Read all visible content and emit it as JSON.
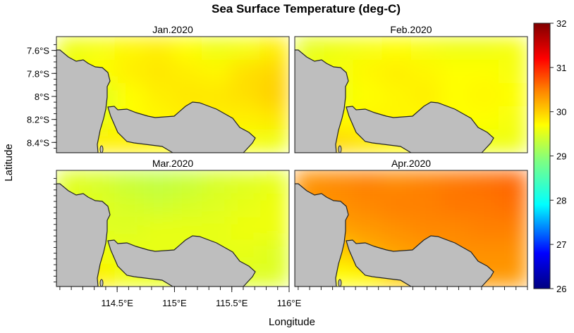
{
  "chart_data": {
    "type": "heatmap",
    "title": "Sea Surface Temperature (deg-C)",
    "xlabel": "Longitude",
    "ylabel": "Latitude",
    "xlim": [
      113.97,
      116.0
    ],
    "ylim": [
      -8.49,
      -7.48
    ],
    "x_ticks": [
      {
        "value": 114.5,
        "label": "114.5°E"
      },
      {
        "value": 115.0,
        "label": "115°E"
      },
      {
        "value": 115.5,
        "label": "115.5°E"
      },
      {
        "value": 116.0,
        "label": "116°E"
      }
    ],
    "y_ticks": [
      {
        "value": -7.6,
        "label": "7.6°S"
      },
      {
        "value": -7.8,
        "label": "7.8°S"
      },
      {
        "value": -8.0,
        "label": "8°S"
      },
      {
        "value": -8.2,
        "label": "8.2°S"
      },
      {
        "value": -8.4,
        "label": "8.4°S"
      }
    ],
    "colorbar": {
      "range": [
        26,
        32
      ],
      "ticks": [
        "26",
        "27",
        "28",
        "29",
        "30",
        "31",
        "32"
      ],
      "colormap": [
        [
          26,
          "#000080"
        ],
        [
          26.8,
          "#0000ff"
        ],
        [
          27.9,
          "#00ffff"
        ],
        [
          28.9,
          "#80ff80"
        ],
        [
          29.7,
          "#ffff00"
        ],
        [
          30.5,
          "#ff8000"
        ],
        [
          31.2,
          "#ff0000"
        ],
        [
          32,
          "#800000"
        ]
      ]
    },
    "land_color": "#bebebe",
    "panels": [
      {
        "name": "Jan.2020",
        "grid": [
          [
            29.6,
            29.65,
            29.75,
            29.8,
            29.7,
            29.6,
            29.65,
            29.8
          ],
          [
            29.6,
            29.7,
            29.8,
            29.85,
            29.8,
            29.75,
            29.9,
            29.95
          ],
          [
            29.5,
            29.5,
            29.7,
            29.8,
            29.85,
            29.85,
            29.9,
            30.0
          ],
          [
            29.6,
            29.55,
            29.7,
            29.75,
            29.8,
            29.8,
            29.8,
            29.85
          ],
          [
            29.75,
            29.8,
            29.8,
            29.75,
            29.7,
            29.7,
            29.65,
            29.6
          ]
        ]
      },
      {
        "name": "Feb.2020",
        "grid": [
          [
            29.55,
            29.6,
            29.65,
            29.7,
            29.65,
            29.6,
            29.6,
            29.65
          ],
          [
            29.6,
            29.65,
            29.75,
            29.8,
            29.75,
            29.7,
            29.7,
            29.65
          ],
          [
            29.55,
            29.6,
            29.7,
            29.75,
            29.8,
            29.7,
            29.75,
            29.7
          ],
          [
            29.8,
            29.7,
            29.75,
            29.75,
            29.75,
            29.7,
            29.7,
            29.65
          ],
          [
            30.05,
            29.95,
            29.85,
            29.75,
            29.7,
            29.65,
            29.6,
            29.6
          ]
        ]
      },
      {
        "name": "Mar.2020",
        "grid": [
          [
            29.5,
            29.45,
            29.35,
            29.3,
            29.35,
            29.45,
            29.5,
            29.55
          ],
          [
            29.55,
            29.5,
            29.45,
            29.4,
            29.45,
            29.5,
            29.55,
            29.6
          ],
          [
            29.5,
            29.5,
            29.5,
            29.55,
            29.55,
            29.55,
            29.6,
            29.6
          ],
          [
            29.8,
            29.6,
            29.55,
            29.55,
            29.55,
            29.55,
            29.55,
            29.5
          ],
          [
            29.9,
            29.8,
            29.6,
            29.55,
            29.55,
            29.5,
            29.5,
            29.5
          ]
        ]
      },
      {
        "name": "Apr.2020",
        "grid": [
          [
            30.4,
            30.45,
            30.5,
            30.45,
            30.5,
            30.55,
            30.6,
            30.65
          ],
          [
            30.35,
            30.4,
            30.45,
            30.5,
            30.5,
            30.55,
            30.55,
            30.6
          ],
          [
            30.3,
            30.3,
            30.35,
            30.4,
            30.45,
            30.45,
            30.5,
            30.5
          ],
          [
            30.1,
            30.0,
            30.2,
            30.3,
            30.35,
            30.4,
            30.4,
            30.4
          ],
          [
            29.85,
            29.7,
            29.75,
            30.0,
            30.2,
            30.3,
            30.35,
            30.35
          ]
        ]
      }
    ]
  }
}
